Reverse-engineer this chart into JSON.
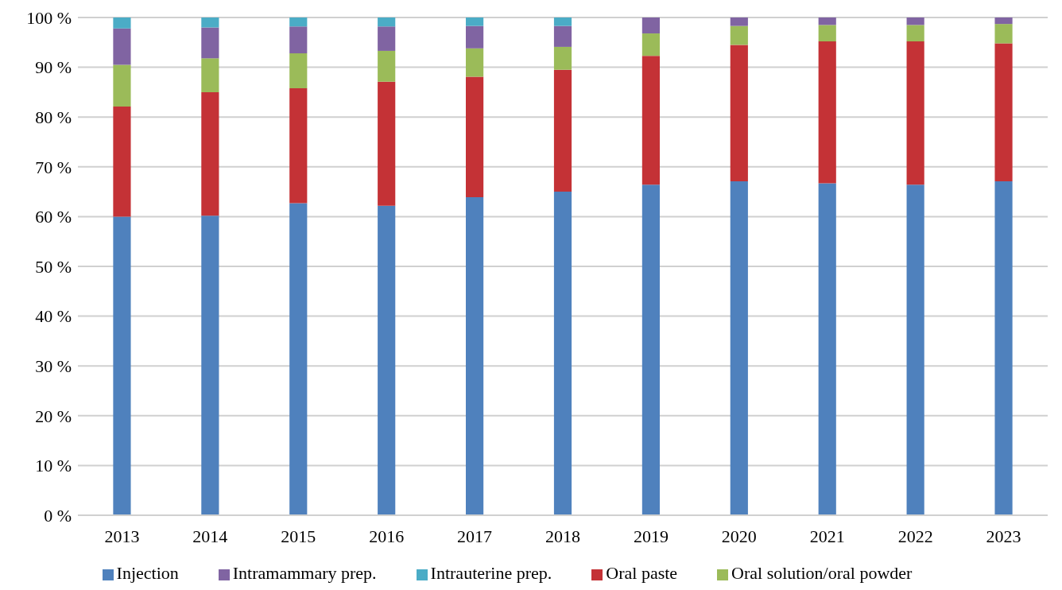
{
  "chart_data": {
    "type": "bar",
    "stacked": true,
    "categories": [
      "2013",
      "2014",
      "2015",
      "2016",
      "2017",
      "2018",
      "2019",
      "2020",
      "2021",
      "2022",
      "2023"
    ],
    "series": [
      {
        "name": "Injection",
        "color": "#4f81bd",
        "values": [
          60.0,
          60.2,
          62.7,
          62.2,
          63.9,
          65.0,
          66.4,
          67.1,
          66.7,
          66.4,
          67.1
        ]
      },
      {
        "name": "Oral paste",
        "color": "#c43236",
        "values": [
          22.1,
          24.8,
          23.1,
          24.9,
          24.2,
          24.5,
          25.9,
          27.4,
          28.5,
          28.8,
          27.7
        ]
      },
      {
        "name": "Oral solution/oral powder",
        "color": "#9bbb59",
        "values": [
          8.4,
          6.8,
          7.0,
          6.2,
          5.7,
          4.6,
          4.5,
          3.8,
          3.3,
          3.3,
          3.9
        ]
      },
      {
        "name": "Intramammary prep.",
        "color": "#8064a2",
        "values": [
          7.3,
          6.2,
          5.4,
          4.9,
          4.5,
          4.2,
          3.2,
          1.7,
          1.5,
          1.5,
          1.3
        ]
      },
      {
        "name": "Intrauterine prep.",
        "color": "#4bacc6",
        "values": [
          2.2,
          2.0,
          1.8,
          1.8,
          1.7,
          1.7,
          0,
          0,
          0,
          0,
          0
        ]
      }
    ],
    "ylim": [
      0,
      100
    ],
    "yticks": [
      {
        "value": 0,
        "label": "0 %"
      },
      {
        "value": 10,
        "label": "10 %"
      },
      {
        "value": 20,
        "label": "20 %"
      },
      {
        "value": 30,
        "label": "30 %"
      },
      {
        "value": 40,
        "label": "40 %"
      },
      {
        "value": 50,
        "label": "50 %"
      },
      {
        "value": 60,
        "label": "60 %"
      },
      {
        "value": 70,
        "label": "70 %"
      },
      {
        "value": 80,
        "label": "80 %"
      },
      {
        "value": 90,
        "label": "90 %"
      },
      {
        "value": 100,
        "label": "100 %"
      }
    ],
    "grid": "y",
    "legend": "bottom"
  }
}
